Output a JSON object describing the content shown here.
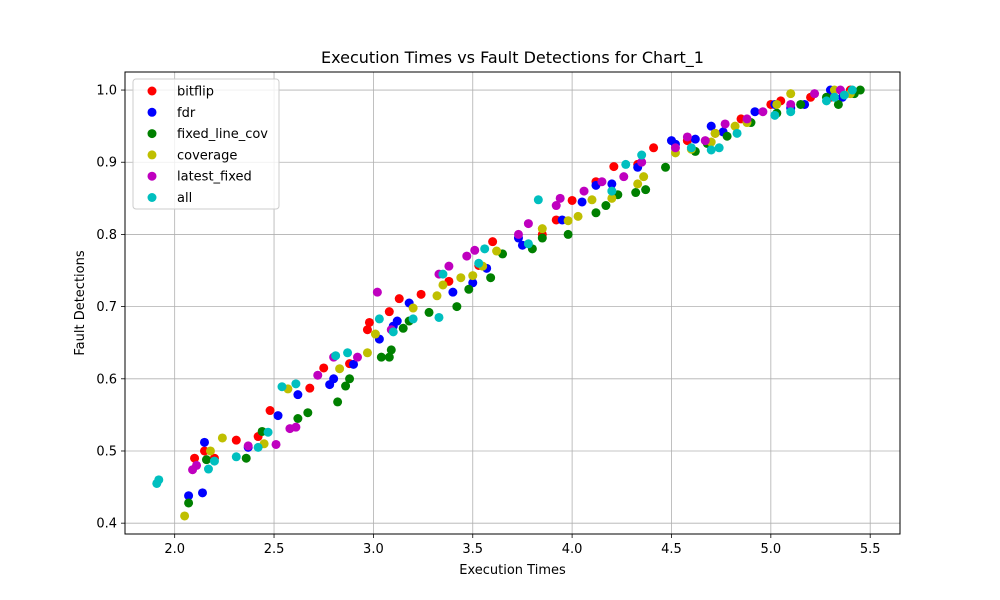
{
  "chart_data": {
    "type": "scatter",
    "title": "Execution Times vs Fault Detections for Chart_1",
    "xlabel": "Execution Times",
    "ylabel": "Fault Detections",
    "xlim": [
      1.75,
      5.65
    ],
    "ylim": [
      0.385,
      1.025
    ],
    "xticks": [
      "2.0",
      "2.5",
      "3.0",
      "3.5",
      "4.0",
      "4.5",
      "5.0",
      "5.5"
    ],
    "yticks": [
      "0.4",
      "0.5",
      "0.6",
      "0.7",
      "0.8",
      "0.9",
      "1.0"
    ],
    "grid": true,
    "legend_position": "top-left",
    "series": [
      {
        "name": "bitflip",
        "color": "#ff0000",
        "points": [
          [
            2.1,
            0.49
          ],
          [
            2.15,
            0.5
          ],
          [
            2.2,
            0.49
          ],
          [
            2.31,
            0.515
          ],
          [
            2.42,
            0.52
          ],
          [
            2.48,
            0.556
          ],
          [
            2.68,
            0.587
          ],
          [
            2.75,
            0.615
          ],
          [
            2.88,
            0.621
          ],
          [
            2.97,
            0.668
          ],
          [
            2.98,
            0.678
          ],
          [
            3.08,
            0.693
          ],
          [
            3.13,
            0.711
          ],
          [
            3.24,
            0.717
          ],
          [
            3.38,
            0.735
          ],
          [
            3.53,
            0.757
          ],
          [
            3.6,
            0.79
          ],
          [
            3.85,
            0.8
          ],
          [
            3.92,
            0.82
          ],
          [
            4.0,
            0.847
          ],
          [
            4.12,
            0.873
          ],
          [
            4.21,
            0.894
          ],
          [
            4.33,
            0.897
          ],
          [
            4.41,
            0.92
          ],
          [
            4.58,
            0.93
          ],
          [
            4.72,
            0.94
          ],
          [
            4.85,
            0.96
          ],
          [
            5.0,
            0.98
          ],
          [
            5.05,
            0.985
          ],
          [
            5.2,
            0.99
          ],
          [
            5.3,
            0.99
          ],
          [
            5.4,
            1.0
          ]
        ]
      },
      {
        "name": "fdr",
        "color": "#0000ff",
        "points": [
          [
            2.07,
            0.438
          ],
          [
            2.14,
            0.442
          ],
          [
            2.15,
            0.512
          ],
          [
            2.37,
            0.505
          ],
          [
            2.52,
            0.549
          ],
          [
            2.62,
            0.578
          ],
          [
            2.8,
            0.6
          ],
          [
            2.78,
            0.592
          ],
          [
            2.9,
            0.62
          ],
          [
            3.03,
            0.655
          ],
          [
            3.1,
            0.673
          ],
          [
            3.12,
            0.68
          ],
          [
            3.18,
            0.705
          ],
          [
            3.4,
            0.72
          ],
          [
            3.5,
            0.733
          ],
          [
            3.57,
            0.753
          ],
          [
            3.73,
            0.795
          ],
          [
            3.75,
            0.785
          ],
          [
            3.95,
            0.82
          ],
          [
            4.05,
            0.845
          ],
          [
            4.12,
            0.868
          ],
          [
            4.2,
            0.87
          ],
          [
            4.33,
            0.893
          ],
          [
            4.5,
            0.93
          ],
          [
            4.52,
            0.925
          ],
          [
            4.62,
            0.932
          ],
          [
            4.7,
            0.95
          ],
          [
            4.76,
            0.942
          ],
          [
            4.92,
            0.97
          ],
          [
            5.02,
            0.98
          ],
          [
            5.1,
            0.975
          ],
          [
            5.17,
            0.98
          ],
          [
            5.3,
            1.0
          ],
          [
            5.36,
            0.99
          ]
        ]
      },
      {
        "name": "fixed_line_cov",
        "color": "#008000",
        "points": [
          [
            2.07,
            0.428
          ],
          [
            2.16,
            0.488
          ],
          [
            2.36,
            0.49
          ],
          [
            2.44,
            0.527
          ],
          [
            2.62,
            0.545
          ],
          [
            2.67,
            0.553
          ],
          [
            2.82,
            0.568
          ],
          [
            2.86,
            0.59
          ],
          [
            2.88,
            0.6
          ],
          [
            3.04,
            0.63
          ],
          [
            3.08,
            0.63
          ],
          [
            3.09,
            0.64
          ],
          [
            3.15,
            0.67
          ],
          [
            3.18,
            0.68
          ],
          [
            3.28,
            0.692
          ],
          [
            3.42,
            0.7
          ],
          [
            3.48,
            0.724
          ],
          [
            3.59,
            0.74
          ],
          [
            3.65,
            0.773
          ],
          [
            3.8,
            0.78
          ],
          [
            3.85,
            0.795
          ],
          [
            3.98,
            0.8
          ],
          [
            4.12,
            0.83
          ],
          [
            4.17,
            0.84
          ],
          [
            4.23,
            0.855
          ],
          [
            4.32,
            0.858
          ],
          [
            4.37,
            0.862
          ],
          [
            4.47,
            0.893
          ],
          [
            4.62,
            0.915
          ],
          [
            4.68,
            0.926
          ],
          [
            4.78,
            0.936
          ],
          [
            4.9,
            0.955
          ],
          [
            5.03,
            0.968
          ],
          [
            5.15,
            0.98
          ],
          [
            5.28,
            0.99
          ],
          [
            5.34,
            0.98
          ],
          [
            5.42,
            0.995
          ],
          [
            5.45,
            1.0
          ]
        ]
      },
      {
        "name": "coverage",
        "color": "#bfbf00",
        "points": [
          [
            2.05,
            0.41
          ],
          [
            2.18,
            0.5
          ],
          [
            2.24,
            0.518
          ],
          [
            2.45,
            0.51
          ],
          [
            2.57,
            0.586
          ],
          [
            2.83,
            0.614
          ],
          [
            2.97,
            0.636
          ],
          [
            3.01,
            0.662
          ],
          [
            3.2,
            0.698
          ],
          [
            3.32,
            0.715
          ],
          [
            3.35,
            0.73
          ],
          [
            3.44,
            0.74
          ],
          [
            3.5,
            0.743
          ],
          [
            3.55,
            0.756
          ],
          [
            3.62,
            0.777
          ],
          [
            3.85,
            0.808
          ],
          [
            3.98,
            0.819
          ],
          [
            4.03,
            0.825
          ],
          [
            4.1,
            0.848
          ],
          [
            4.2,
            0.85
          ],
          [
            4.33,
            0.87
          ],
          [
            4.36,
            0.88
          ],
          [
            4.52,
            0.913
          ],
          [
            4.6,
            0.918
          ],
          [
            4.7,
            0.928
          ],
          [
            4.72,
            0.94
          ],
          [
            4.82,
            0.95
          ],
          [
            4.88,
            0.955
          ],
          [
            5.03,
            0.98
          ],
          [
            5.1,
            0.995
          ],
          [
            5.32,
            1.0
          ],
          [
            5.4,
            0.995
          ]
        ]
      },
      {
        "name": "latest_fixed",
        "color": "#bf00bf",
        "points": [
          [
            2.09,
            0.474
          ],
          [
            2.11,
            0.48
          ],
          [
            2.37,
            0.507
          ],
          [
            2.51,
            0.509
          ],
          [
            2.58,
            0.531
          ],
          [
            2.61,
            0.533
          ],
          [
            2.72,
            0.605
          ],
          [
            2.8,
            0.63
          ],
          [
            2.92,
            0.63
          ],
          [
            3.02,
            0.72
          ],
          [
            3.09,
            0.668
          ],
          [
            3.33,
            0.745
          ],
          [
            3.38,
            0.756
          ],
          [
            3.47,
            0.77
          ],
          [
            3.51,
            0.778
          ],
          [
            3.73,
            0.8
          ],
          [
            3.78,
            0.815
          ],
          [
            3.92,
            0.84
          ],
          [
            3.94,
            0.85
          ],
          [
            4.06,
            0.86
          ],
          [
            4.15,
            0.873
          ],
          [
            4.26,
            0.88
          ],
          [
            4.35,
            0.9
          ],
          [
            4.52,
            0.92
          ],
          [
            4.58,
            0.935
          ],
          [
            4.67,
            0.93
          ],
          [
            4.77,
            0.953
          ],
          [
            4.88,
            0.96
          ],
          [
            4.96,
            0.97
          ],
          [
            5.1,
            0.98
          ],
          [
            5.22,
            0.995
          ],
          [
            5.35,
            1.0
          ]
        ]
      },
      {
        "name": "all",
        "color": "#00bfbf",
        "points": [
          [
            1.91,
            0.455
          ],
          [
            1.92,
            0.46
          ],
          [
            2.17,
            0.475
          ],
          [
            2.2,
            0.486
          ],
          [
            2.31,
            0.492
          ],
          [
            2.42,
            0.505
          ],
          [
            2.47,
            0.526
          ],
          [
            2.54,
            0.589
          ],
          [
            2.61,
            0.593
          ],
          [
            2.81,
            0.632
          ],
          [
            2.87,
            0.636
          ],
          [
            3.03,
            0.683
          ],
          [
            3.1,
            0.665
          ],
          [
            3.2,
            0.683
          ],
          [
            3.33,
            0.685
          ],
          [
            3.35,
            0.745
          ],
          [
            3.53,
            0.76
          ],
          [
            3.56,
            0.78
          ],
          [
            3.78,
            0.787
          ],
          [
            3.83,
            0.848
          ],
          [
            4.2,
            0.86
          ],
          [
            4.27,
            0.897
          ],
          [
            4.35,
            0.91
          ],
          [
            4.6,
            0.92
          ],
          [
            4.7,
            0.917
          ],
          [
            4.74,
            0.92
          ],
          [
            4.83,
            0.94
          ],
          [
            5.02,
            0.965
          ],
          [
            5.1,
            0.97
          ],
          [
            5.28,
            0.985
          ],
          [
            5.32,
            0.99
          ],
          [
            5.37,
            0.993
          ],
          [
            5.41,
            1.0
          ]
        ]
      }
    ]
  }
}
